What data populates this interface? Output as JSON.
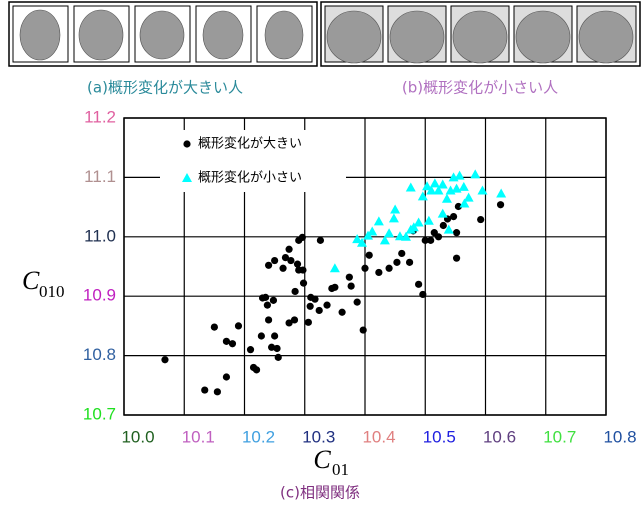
{
  "header": {
    "caption_a": "(a)概形変化が大きい人",
    "caption_b": "(b)概形変化が小さい人"
  },
  "chart_data": {
    "type": "scatter",
    "caption": "(c)相関関係",
    "x_label": {
      "symbol": "C",
      "subscript": "01"
    },
    "y_label": {
      "symbol": "C",
      "subscript": "010"
    },
    "xlim": [
      10.0,
      10.8
    ],
    "ylim": [
      10.7,
      11.2
    ],
    "xticks": [
      {
        "value": 10.0,
        "label": "10.0"
      },
      10.1,
      10.2,
      10.3,
      10.4,
      10.5,
      10.6,
      10.7,
      10.8
    ],
    "xtick_colors": [
      "#206020",
      "#c060c0",
      "#40a0e0",
      "#203080",
      "#e08080",
      "#2020e0",
      "#604080",
      "#40e040",
      "#2050a0"
    ],
    "yticks": [
      10.7,
      10.8,
      10.9,
      {
        "value": 11.0,
        "label": "11.0"
      },
      11.1,
      11.2
    ],
    "ytick_colors": [
      "#20e020",
      "#3060a0",
      "#c020c0",
      "#203050",
      "#b09090",
      "#e060a0"
    ],
    "grid": true,
    "legend": "upper left",
    "series": [
      {
        "name": "概形変化が大きい",
        "color": "#000000",
        "marker": "circle",
        "x": [
          10.068,
          10.134,
          10.155,
          10.17,
          10.15,
          10.17,
          10.18,
          10.19,
          10.21,
          10.215,
          10.22,
          10.228,
          10.23,
          10.235,
          10.238,
          10.24,
          10.245,
          10.248,
          10.25,
          10.24,
          10.25,
          10.268,
          10.274,
          10.277,
          10.264,
          10.254,
          10.256,
          10.274,
          10.283,
          10.284,
          10.288,
          10.29,
          10.296,
          10.29,
          10.297,
          10.298,
          10.306,
          10.309,
          10.31,
          10.317,
          10.326,
          10.324,
          10.337,
          10.345,
          10.35,
          10.362,
          10.374,
          10.377,
          10.387,
          10.397,
          10.407,
          10.423,
          10.44,
          10.453,
          10.461,
          10.474,
          10.489,
          10.496,
          10.5,
          10.509,
          10.515,
          10.522,
          10.53,
          10.537,
          10.547,
          10.552,
          10.552,
          10.555,
          10.592,
          10.625,
          10.48,
          10.4
        ],
        "values": [
          10.793,
          10.742,
          10.739,
          10.764,
          10.848,
          10.824,
          10.82,
          10.85,
          10.81,
          10.78,
          10.776,
          10.833,
          10.897,
          10.898,
          10.885,
          10.86,
          10.814,
          10.893,
          10.833,
          10.952,
          10.96,
          10.965,
          10.979,
          10.96,
          10.947,
          10.812,
          10.797,
          10.855,
          10.86,
          10.908,
          10.954,
          10.994,
          10.999,
          10.944,
          10.944,
          10.922,
          10.856,
          10.883,
          10.898,
          10.895,
          10.994,
          10.876,
          10.885,
          10.913,
          10.915,
          10.873,
          10.932,
          10.917,
          10.89,
          10.843,
          10.969,
          10.94,
          10.947,
          10.957,
          10.972,
          10.957,
          10.92,
          10.903,
          10.994,
          10.994,
          11.007,
          11.0,
          11.019,
          11.03,
          11.034,
          11.007,
          10.964,
          11.051,
          11.029,
          11.054,
          11.01,
          10.947
        ]
      },
      {
        "name": "概形変化が小さい",
        "color": "#00ffff",
        "marker": "triangle",
        "x": [
          10.35,
          10.387,
          10.395,
          10.405,
          10.412,
          10.423,
          10.433,
          10.44,
          10.45,
          10.458,
          10.468,
          10.476,
          10.481,
          10.476,
          10.489,
          10.496,
          10.503,
          10.51,
          10.516,
          10.522,
          10.529,
          10.536,
          10.542,
          10.547,
          10.552,
          10.557,
          10.564,
          10.565,
          10.572,
          10.583,
          10.595,
          10.626,
          10.529,
          10.539,
          10.506,
          10.448
        ],
        "values": [
          10.947,
          10.996,
          10.99,
          11.002,
          11.009,
          11.026,
          10.994,
          11.006,
          11.046,
          11.001,
          11.0,
          11.012,
          11.016,
          11.083,
          11.024,
          11.068,
          11.085,
          11.078,
          11.09,
          11.078,
          11.088,
          11.064,
          11.078,
          11.1,
          11.081,
          11.103,
          11.084,
          11.056,
          11.066,
          11.105,
          11.078,
          11.073,
          11.039,
          11.012,
          11.027,
          11.031
        ]
      }
    ]
  }
}
